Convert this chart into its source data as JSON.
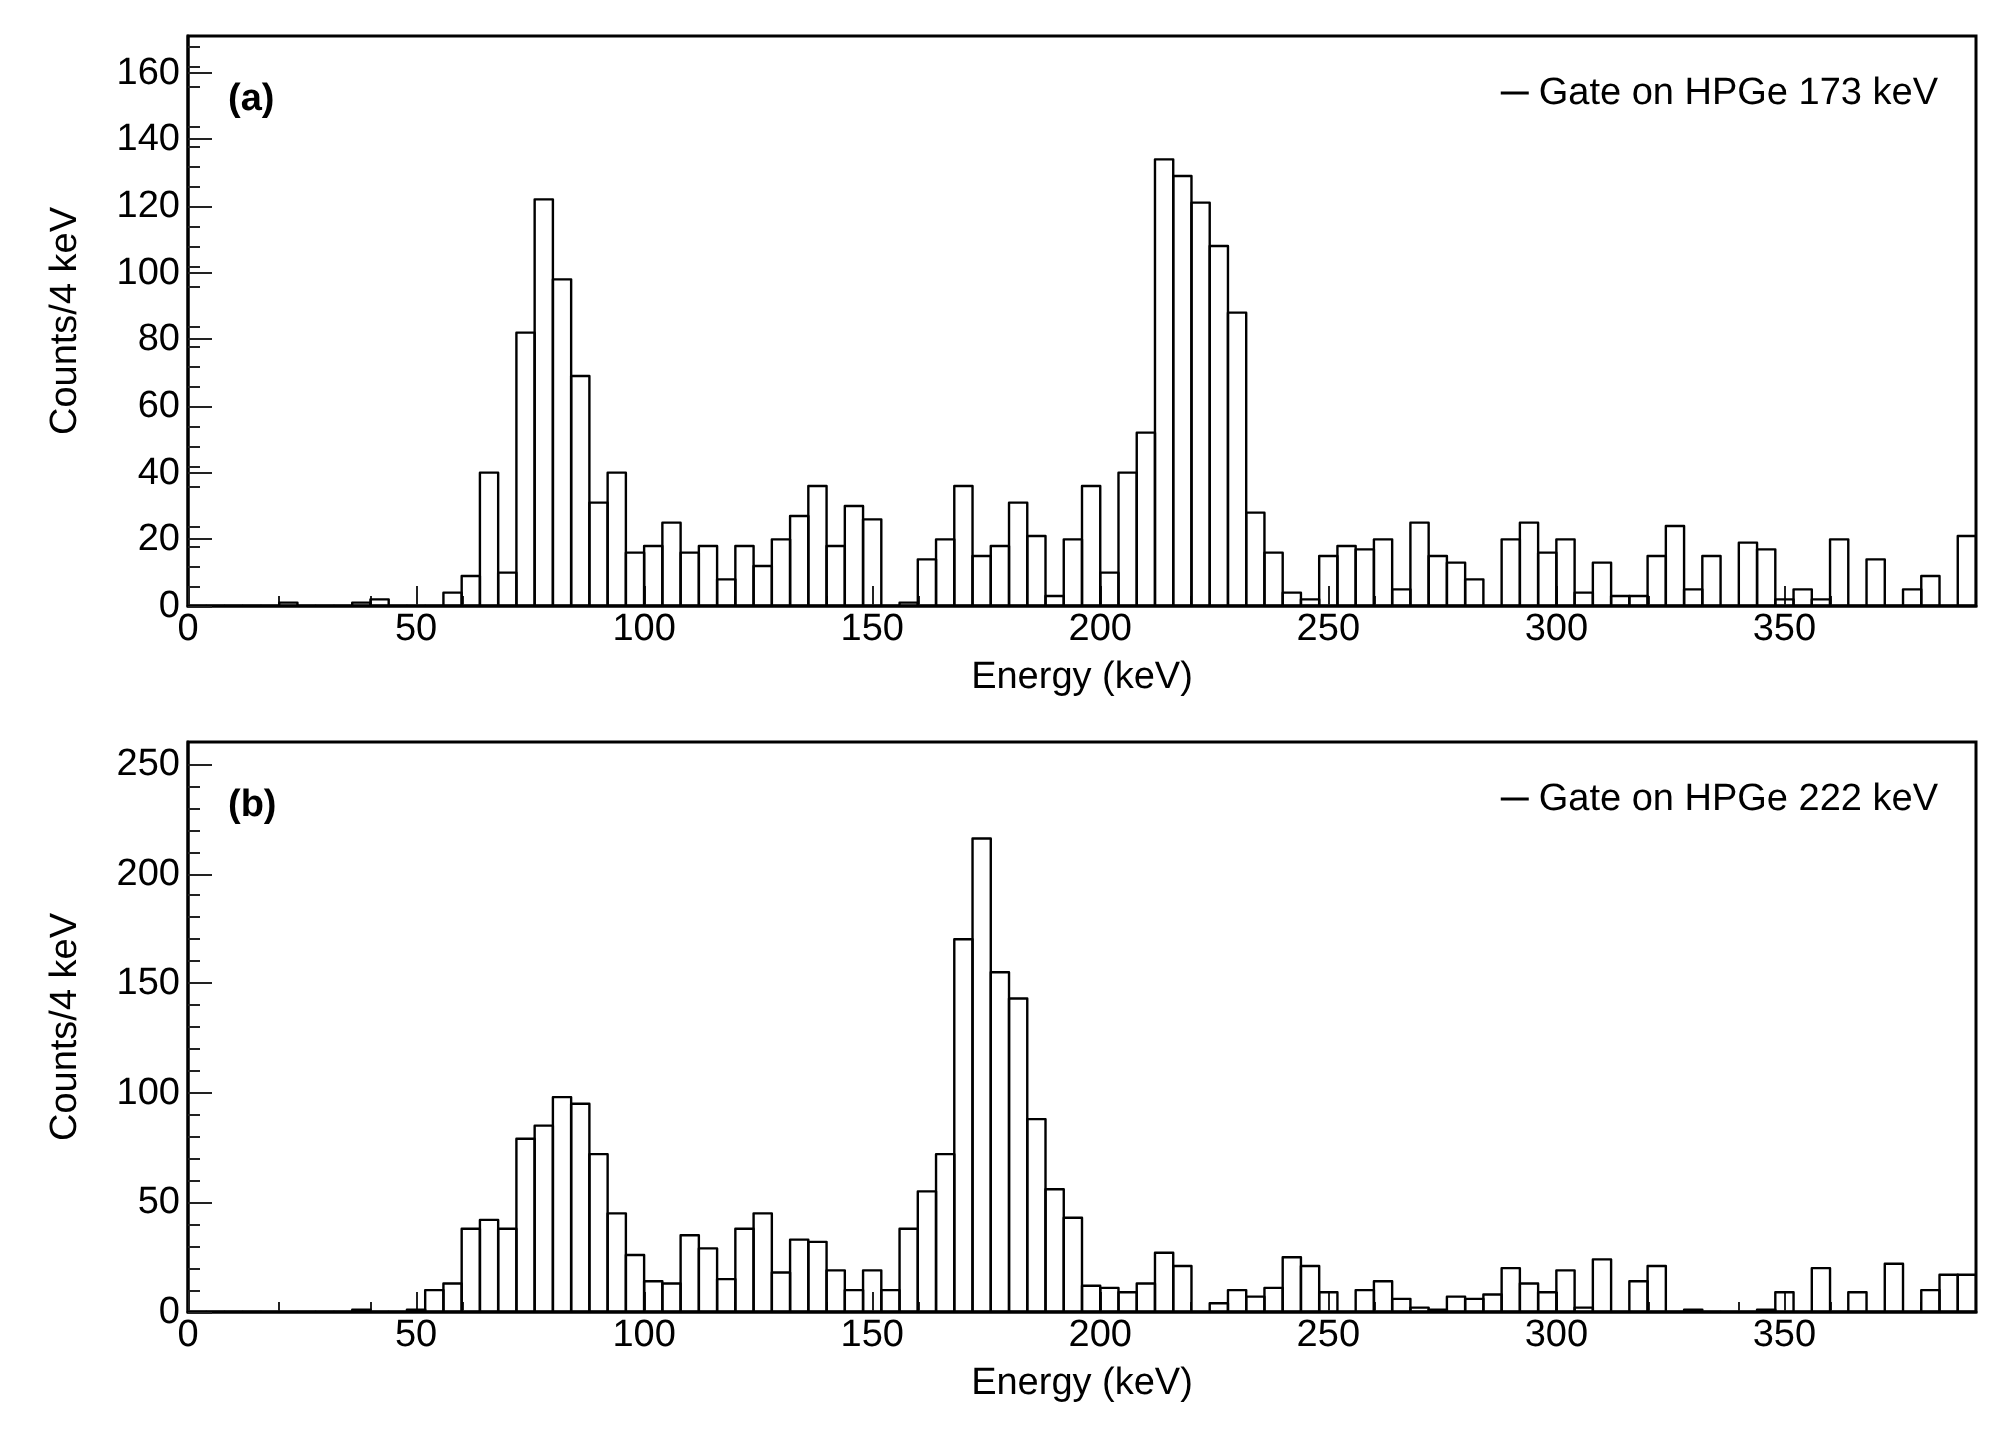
{
  "chart_data": [
    {
      "type": "histogram",
      "annotations": [
        "(a)"
      ],
      "xlabel": "Energy (keV)",
      "ylabel": "Counts/4 keV",
      "legend": "top right",
      "xlim": [
        0,
        392
      ],
      "xticks": [
        0,
        50,
        100,
        150,
        200,
        250,
        300,
        350
      ],
      "ylim": [
        0,
        171
      ],
      "yticks": [
        0,
        20,
        40,
        60,
        80,
        100,
        120,
        140,
        160
      ],
      "bins": [
        0,
        4,
        8,
        12,
        16,
        20,
        24,
        28,
        32,
        36,
        40,
        44,
        48,
        52,
        56,
        60,
        64,
        68,
        72,
        76,
        80,
        84,
        88,
        92,
        96,
        100,
        104,
        108,
        112,
        116,
        120,
        124,
        128,
        132,
        136,
        140,
        144,
        148,
        152,
        156,
        160,
        164,
        168,
        172,
        176,
        180,
        184,
        188,
        192,
        196,
        200,
        204,
        208,
        212,
        216,
        220,
        224,
        228,
        232,
        236,
        240,
        244,
        248,
        252,
        256,
        260,
        264,
        268,
        272,
        276,
        280,
        284,
        288,
        292,
        296,
        300,
        304,
        308,
        312,
        316,
        320,
        324,
        328,
        332,
        336,
        340,
        344,
        348,
        352,
        356,
        360,
        364,
        368,
        372,
        376,
        380,
        384,
        388,
        392
      ],
      "series": [
        {
          "name": "Gate on HPGe 173 keV",
          "color": "#000000",
          "values": [
            0,
            0,
            0,
            0,
            0,
            1,
            0,
            0,
            0,
            1,
            2,
            0,
            0,
            0,
            4,
            9,
            40,
            10,
            82,
            122,
            98,
            69,
            31,
            40,
            16,
            18,
            25,
            16,
            18,
            8,
            18,
            12,
            20,
            27,
            36,
            18,
            30,
            26,
            0,
            1,
            14,
            20,
            36,
            15,
            18,
            31,
            21,
            3,
            20,
            36,
            10,
            40,
            52,
            134,
            129,
            121,
            108,
            88,
            28,
            16,
            4,
            2,
            15,
            18,
            17,
            20,
            5,
            25,
            15,
            13,
            8,
            0,
            20,
            25,
            16,
            20,
            4,
            13,
            3,
            3,
            15,
            24,
            5,
            15,
            0,
            19,
            17,
            2,
            5,
            2,
            20,
            0,
            14,
            0,
            5,
            9,
            0,
            21
          ]
        }
      ]
    },
    {
      "type": "histogram",
      "annotations": [
        "(b)"
      ],
      "xlabel": "Energy (keV)",
      "ylabel": "Counts/4 keV",
      "legend": "top right",
      "xlim": [
        0,
        392
      ],
      "xticks": [
        0,
        50,
        100,
        150,
        200,
        250,
        300,
        350
      ],
      "ylim": [
        0,
        260
      ],
      "yticks": [
        0,
        50,
        100,
        150,
        200,
        250
      ],
      "bins": [
        0,
        4,
        8,
        12,
        16,
        20,
        24,
        28,
        32,
        36,
        40,
        44,
        48,
        52,
        56,
        60,
        64,
        68,
        72,
        76,
        80,
        84,
        88,
        92,
        96,
        100,
        104,
        108,
        112,
        116,
        120,
        124,
        128,
        132,
        136,
        140,
        144,
        148,
        152,
        156,
        160,
        164,
        168,
        172,
        176,
        180,
        184,
        188,
        192,
        196,
        200,
        204,
        208,
        212,
        216,
        220,
        224,
        228,
        232,
        236,
        240,
        244,
        248,
        252,
        256,
        260,
        264,
        268,
        272,
        276,
        280,
        284,
        288,
        292,
        296,
        300,
        304,
        308,
        312,
        316,
        320,
        324,
        328,
        332,
        336,
        340,
        344,
        348,
        352,
        356,
        360,
        364,
        368,
        372,
        376,
        380,
        384,
        388,
        392
      ],
      "series": [
        {
          "name": "Gate on HPGe 222 keV",
          "color": "#000000",
          "values": [
            0,
            0,
            0,
            0,
            0,
            0,
            0,
            0,
            0,
            1,
            0,
            0,
            1,
            10,
            13,
            38,
            42,
            38,
            79,
            85,
            98,
            95,
            72,
            45,
            26,
            14,
            13,
            35,
            29,
            15,
            38,
            45,
            18,
            33,
            32,
            19,
            10,
            19,
            10,
            38,
            55,
            72,
            170,
            216,
            155,
            143,
            88,
            56,
            43,
            12,
            11,
            9,
            13,
            27,
            21,
            0,
            4,
            10,
            7,
            11,
            25,
            21,
            9,
            0,
            10,
            14,
            6,
            2,
            1,
            7,
            6,
            8,
            20,
            13,
            9,
            19,
            2,
            24,
            0,
            14,
            21,
            0,
            1,
            0,
            0,
            0,
            1,
            9,
            0,
            20,
            0,
            9,
            0,
            22,
            0,
            10,
            17,
            17
          ]
        }
      ]
    }
  ]
}
